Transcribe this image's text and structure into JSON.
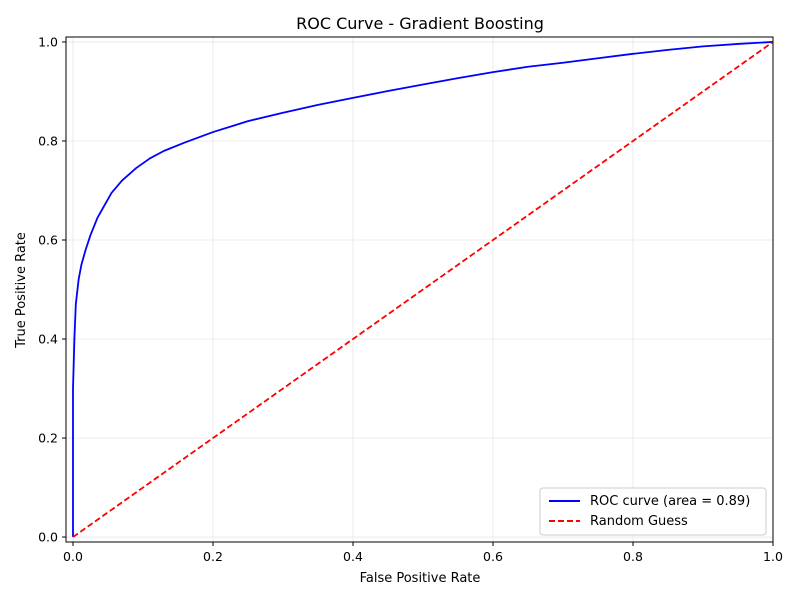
{
  "chart_data": {
    "type": "line",
    "title": "ROC Curve - Gradient Boosting",
    "xlabel": "False Positive Rate",
    "ylabel": "True Positive Rate",
    "xlim": [
      -0.01,
      1.0
    ],
    "ylim": [
      -0.01,
      1.01
    ],
    "xticks": [
      "0.0",
      "0.2",
      "0.4",
      "0.6",
      "0.8",
      "1.0"
    ],
    "yticks": [
      "0.0",
      "0.2",
      "0.4",
      "0.6",
      "0.8",
      "1.0"
    ],
    "grid": true,
    "legend_position": "lower-right",
    "series": [
      {
        "name": "ROC curve (area = 0.89)",
        "color": "#0000ff",
        "style": "solid",
        "points": [
          [
            0.0,
            0.0
          ],
          [
            0.0,
            0.3
          ],
          [
            0.002,
            0.4
          ],
          [
            0.004,
            0.47
          ],
          [
            0.008,
            0.52
          ],
          [
            0.012,
            0.55
          ],
          [
            0.018,
            0.58
          ],
          [
            0.025,
            0.61
          ],
          [
            0.035,
            0.645
          ],
          [
            0.045,
            0.67
          ],
          [
            0.055,
            0.695
          ],
          [
            0.07,
            0.72
          ],
          [
            0.09,
            0.745
          ],
          [
            0.11,
            0.765
          ],
          [
            0.13,
            0.78
          ],
          [
            0.16,
            0.797
          ],
          [
            0.2,
            0.818
          ],
          [
            0.25,
            0.84
          ],
          [
            0.3,
            0.857
          ],
          [
            0.35,
            0.873
          ],
          [
            0.4,
            0.887
          ],
          [
            0.45,
            0.901
          ],
          [
            0.5,
            0.914
          ],
          [
            0.55,
            0.927
          ],
          [
            0.6,
            0.939
          ],
          [
            0.65,
            0.95
          ],
          [
            0.7,
            0.958
          ],
          [
            0.75,
            0.967
          ],
          [
            0.8,
            0.976
          ],
          [
            0.85,
            0.984
          ],
          [
            0.9,
            0.991
          ],
          [
            0.95,
            0.996
          ],
          [
            1.0,
            1.0
          ]
        ]
      },
      {
        "name": "Random Guess",
        "color": "#ff0000",
        "style": "dashed",
        "points": [
          [
            0.0,
            0.0
          ],
          [
            1.0,
            1.0
          ]
        ]
      }
    ]
  }
}
